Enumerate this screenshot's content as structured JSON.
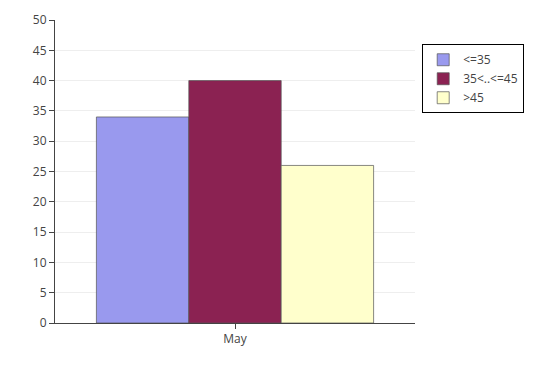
{
  "chart_data": {
    "type": "bar",
    "categories": [
      "May"
    ],
    "series": [
      {
        "name": "<=35",
        "color": "#9999ee",
        "values": [
          34
        ]
      },
      {
        "name": "35<..<=45",
        "color": "#8b2252",
        "values": [
          40
        ]
      },
      {
        "name": ">45",
        "color": "#ffffcc",
        "values": [
          26
        ]
      }
    ],
    "ylim": [
      0,
      50
    ],
    "yticks": [
      0,
      5,
      10,
      15,
      20,
      25,
      30,
      35,
      40,
      45,
      50
    ],
    "grid": true,
    "legend": "right"
  }
}
